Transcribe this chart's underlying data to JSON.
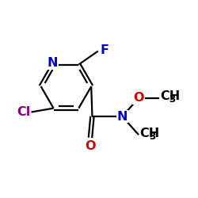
{
  "background": "#ffffff",
  "bond_color": "#000000",
  "bond_lw": 1.6,
  "figsize": [
    2.5,
    2.5
  ],
  "dpi": 100,
  "colors": {
    "N": "#0000cc",
    "F": "#0000cc",
    "Cl": "#800080",
    "O": "#cc0000",
    "C": "#000000"
  }
}
